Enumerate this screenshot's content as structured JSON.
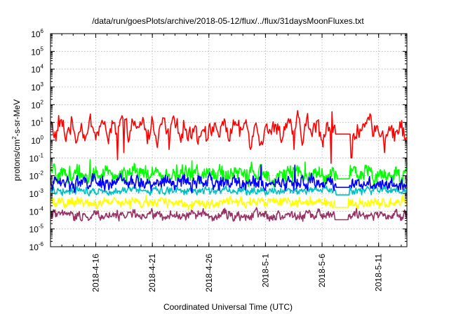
{
  "chart_data": {
    "type": "line",
    "title": "/data/run/goesPlots/archive/2018-05-12/flux/../flux/31daysMoonFluxes.txt",
    "xlabel": "Coordinated Universal Time (UTC)",
    "ylabel_main": "protons/cm",
    "ylabel_sup": "2",
    "ylabel_rest": "-s-sr-MeV",
    "yscale": "log",
    "ylim": [
      1e-06,
      1000000.0
    ],
    "y_ticks": [
      {
        "base": "10",
        "exp": "-6",
        "value": -6
      },
      {
        "base": "10",
        "exp": "-5",
        "value": -5
      },
      {
        "base": "10",
        "exp": "-4",
        "value": -4
      },
      {
        "base": "10",
        "exp": "-3",
        "value": -3
      },
      {
        "base": "10",
        "exp": "-2",
        "value": -2
      },
      {
        "base": "10",
        "exp": "-1",
        "value": -1
      },
      {
        "base": "10",
        "exp": "0",
        "value": 0
      },
      {
        "base": "10",
        "exp": "1",
        "value": 1
      },
      {
        "base": "10",
        "exp": "2",
        "value": 2
      },
      {
        "base": "10",
        "exp": "3",
        "value": 3
      },
      {
        "base": "10",
        "exp": "4",
        "value": 4
      },
      {
        "base": "10",
        "exp": "5",
        "value": 5
      },
      {
        "base": "10",
        "exp": "6",
        "value": 6
      }
    ],
    "xlim": [
      "2018-04-12",
      "2018-05-13.5"
    ],
    "x_ticks": [
      "2018-4-16",
      "2018-4-21",
      "2018-4-26",
      "2018-5-1",
      "2018-5-6",
      "2018-5-11"
    ],
    "grid": true,
    "legend": "none",
    "series": [
      {
        "color": "#ff0000",
        "median": 4.0,
        "spread": 0.55,
        "gap": [
          "2018-05-07.2",
          "2018-05-08.5"
        ],
        "spikes": [
          [
            "2018-04-17.9",
            0.08
          ],
          [
            "2018-04-18.5",
            0.2
          ],
          [
            "2018-04-22.5",
            0.3
          ],
          [
            "2018-05-03.5",
            0.3
          ],
          [
            "2018-05-06.8",
            0.05
          ],
          [
            "2018-05-06.9",
            40
          ],
          [
            "2018-05-08.6",
            0.1
          ],
          [
            "2018-05-11.5",
            0.2
          ]
        ]
      },
      {
        "color": "#00ff00",
        "median": 0.012,
        "spread": 0.45,
        "gap": [
          "2018-05-07.3",
          "2018-05-08.4"
        ],
        "spikes": [
          [
            "2018-04-15.5",
            0.08
          ],
          [
            "2018-04-24.5",
            0.07
          ],
          [
            "2018-05-04.5",
            0.06
          ]
        ]
      },
      {
        "color": "#0000ff",
        "median": 0.004,
        "spread": 0.35,
        "gap": [
          "2018-05-07.2",
          "2018-05-08.4"
        ],
        "spikes": [
          [
            "2018-04-30.6",
            0.04
          ],
          [
            "2018-05-03.6",
            0.04
          ]
        ]
      },
      {
        "color": "#00c0c0",
        "median": 0.0015,
        "spread": 0.2,
        "gap": [
          "2018-05-07.2",
          "2018-05-08.4"
        ],
        "spikes": []
      },
      {
        "color": "#ffff00",
        "median": 0.0003,
        "spread": 0.25,
        "gap": [
          "2018-05-07.1",
          "2018-05-08.3"
        ],
        "spikes": []
      },
      {
        "color": "#993366",
        "median": 6e-05,
        "spread": 0.25,
        "gap": [
          "2018-05-07.1",
          "2018-05-08.3"
        ],
        "spikes": []
      }
    ]
  }
}
